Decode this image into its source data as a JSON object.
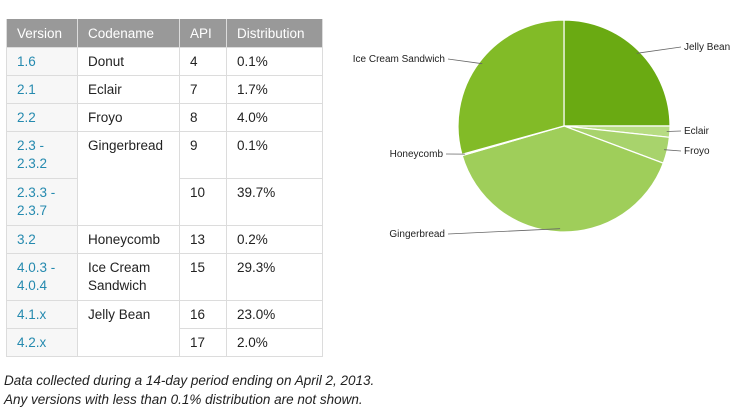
{
  "table": {
    "headers": {
      "version": "Version",
      "codename": "Codename",
      "api": "API",
      "distribution": "Distribution"
    },
    "rows": [
      {
        "version": "1.6",
        "codename": "Donut",
        "api": "4",
        "distribution": "0.1%"
      },
      {
        "version": "2.1",
        "codename": "Eclair",
        "api": "7",
        "distribution": "1.7%"
      },
      {
        "version": "2.2",
        "codename": "Froyo",
        "api": "8",
        "distribution": "4.0%"
      },
      {
        "version": "2.3 - 2.3.2",
        "codename": "Gingerbread",
        "api": "9",
        "distribution": "0.1%"
      },
      {
        "version": "2.3.3 - 2.3.7",
        "codename": "",
        "api": "10",
        "distribution": "39.7%"
      },
      {
        "version": "3.2",
        "codename": "Honeycomb",
        "api": "13",
        "distribution": "0.2%"
      },
      {
        "version": "4.0.3 - 4.0.4",
        "codename": "Ice Cream Sandwich",
        "api": "15",
        "distribution": "29.3%"
      },
      {
        "version": "4.1.x",
        "codename": "Jelly Bean",
        "api": "16",
        "distribution": "23.0%"
      },
      {
        "version": "4.2.x",
        "codename": "",
        "api": "17",
        "distribution": "2.0%"
      }
    ]
  },
  "footnote": {
    "line1": "Data collected during a 14-day period ending on April 2, 2013.",
    "line2": "Any versions with less than 0.1% distribution are not shown."
  },
  "chart_data": {
    "type": "pie",
    "start_angle_deg": 0,
    "direction": "clockwise",
    "slices": [
      {
        "label": "Jelly Bean",
        "value": 25.0,
        "color": "#6aaa12"
      },
      {
        "label": "Eclair",
        "value": 1.7,
        "color": "#b7dc82"
      },
      {
        "label": "Froyo",
        "value": 4.0,
        "color": "#a8d36c"
      },
      {
        "label": "Gingerbread",
        "value": 39.8,
        "color": "#9fce5a"
      },
      {
        "label": "Honeycomb",
        "value": 0.2,
        "color": "#8fc43e"
      },
      {
        "label": "Ice Cream Sandwich",
        "value": 29.3,
        "color": "#82bb27"
      }
    ]
  }
}
